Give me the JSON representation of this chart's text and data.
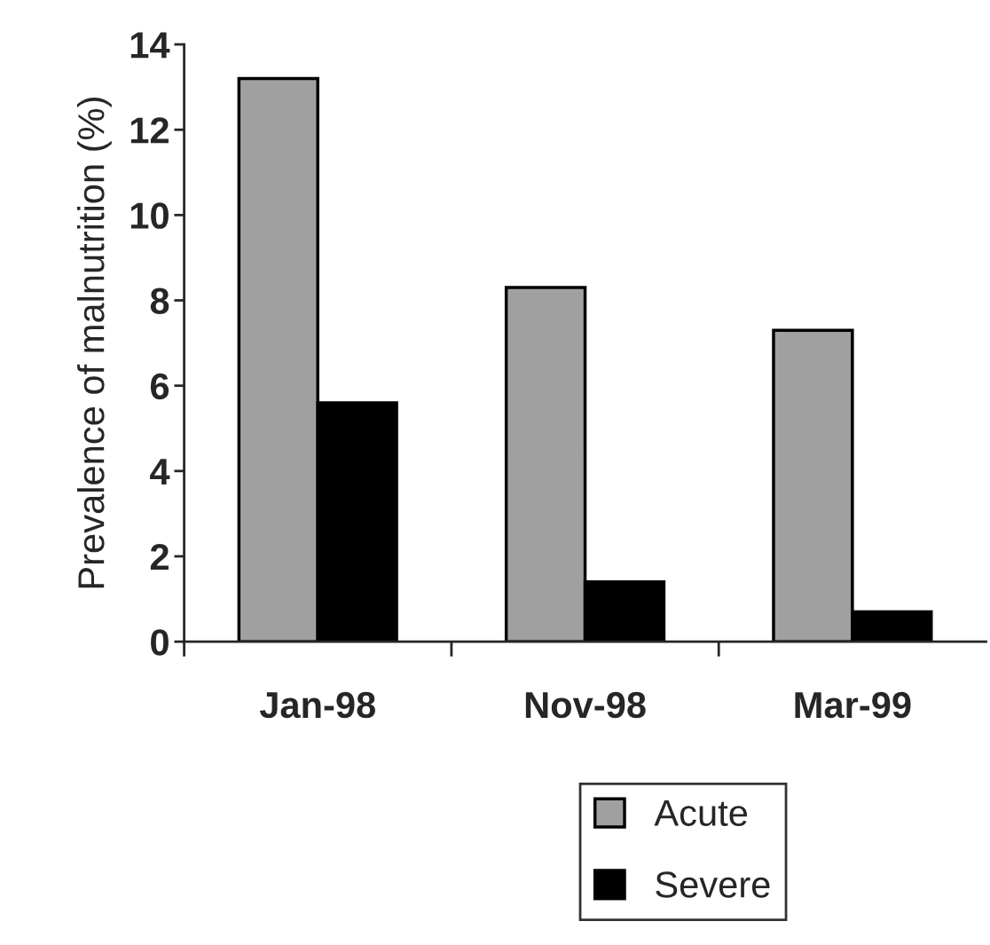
{
  "chart_data": {
    "type": "bar",
    "ylabel": "Prevalence of malnutrition (%)",
    "categories": [
      "Jan-98",
      "Nov-98",
      "Mar-99"
    ],
    "series": [
      {
        "name": "Acute",
        "color": "#a0a0a0",
        "values": [
          13.2,
          8.3,
          7.3
        ]
      },
      {
        "name": "Severe",
        "color": "#000000",
        "values": [
          5.6,
          1.4,
          0.7
        ]
      }
    ],
    "ylim": [
      0,
      14
    ],
    "yticks": [
      0,
      2,
      4,
      6,
      8,
      10,
      12,
      14
    ],
    "grid": false,
    "legend": "bottom"
  }
}
